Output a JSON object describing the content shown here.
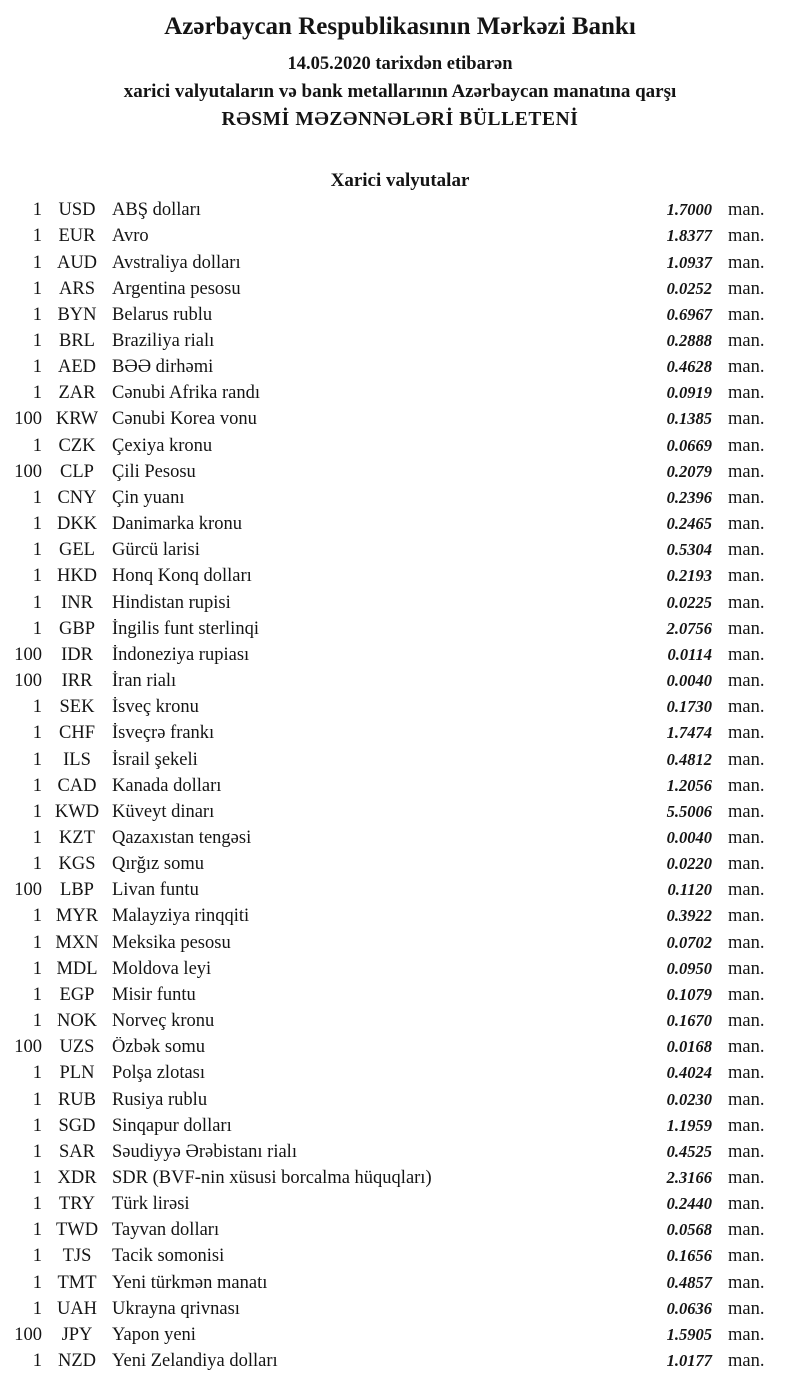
{
  "header": {
    "title": "Azərbaycan Respublikasının Mərkəzi Bankı",
    "date_line": "14.05.2020 tarixdən etibarən",
    "subtitle": "xarici valyutaların və bank metallarının Azərbaycan manatına qarşı",
    "bulletin_line": "RƏSMİ MƏZƏNNƏLƏRİ BÜLLETENİ"
  },
  "section": {
    "title": "Xarici valyutalar"
  },
  "unit_label": "man.",
  "rates": [
    {
      "qty": "1",
      "code": "USD",
      "name": "ABŞ dolları",
      "rate": "1.7000"
    },
    {
      "qty": "1",
      "code": "EUR",
      "name": "Avro",
      "rate": "1.8377"
    },
    {
      "qty": "1",
      "code": "AUD",
      "name": "Avstraliya dolları",
      "rate": "1.0937"
    },
    {
      "qty": "1",
      "code": "ARS",
      "name": "Argentina pesosu",
      "rate": "0.0252"
    },
    {
      "qty": "1",
      "code": "BYN",
      "name": "Belarus rublu",
      "rate": "0.6967"
    },
    {
      "qty": "1",
      "code": "BRL",
      "name": "Braziliya rialı",
      "rate": "0.2888"
    },
    {
      "qty": "1",
      "code": "AED",
      "name": "BƏƏ dirhəmi",
      "rate": "0.4628"
    },
    {
      "qty": "1",
      "code": "ZAR",
      "name": "Cənubi Afrika randı",
      "rate": "0.0919"
    },
    {
      "qty": "100",
      "code": "KRW",
      "name": "Cənubi Korea vonu",
      "rate": "0.1385"
    },
    {
      "qty": "1",
      "code": "CZK",
      "name": "Çexiya kronu",
      "rate": "0.0669"
    },
    {
      "qty": "100",
      "code": "CLP",
      "name": "Çili Pesosu",
      "rate": "0.2079"
    },
    {
      "qty": "1",
      "code": "CNY",
      "name": "Çin yuanı",
      "rate": "0.2396"
    },
    {
      "qty": "1",
      "code": "DKK",
      "name": "Danimarka kronu",
      "rate": "0.2465"
    },
    {
      "qty": "1",
      "code": "GEL",
      "name": "Gürcü larisi",
      "rate": "0.5304"
    },
    {
      "qty": "1",
      "code": "HKD",
      "name": "Honq Konq dolları",
      "rate": "0.2193"
    },
    {
      "qty": "1",
      "code": "INR",
      "name": "Hindistan rupisi",
      "rate": "0.0225"
    },
    {
      "qty": "1",
      "code": "GBP",
      "name": "İngilis funt sterlinqi",
      "rate": "2.0756"
    },
    {
      "qty": "100",
      "code": "IDR",
      "name": "İndoneziya rupiası",
      "rate": "0.0114"
    },
    {
      "qty": "100",
      "code": "IRR",
      "name": "İran rialı",
      "rate": "0.0040"
    },
    {
      "qty": "1",
      "code": "SEK",
      "name": "İsveç kronu",
      "rate": "0.1730"
    },
    {
      "qty": "1",
      "code": "CHF",
      "name": "İsveçrə frankı",
      "rate": "1.7474"
    },
    {
      "qty": "1",
      "code": "ILS",
      "name": "İsrail şekeli",
      "rate": "0.4812"
    },
    {
      "qty": "1",
      "code": "CAD",
      "name": "Kanada dolları",
      "rate": "1.2056"
    },
    {
      "qty": "1",
      "code": "KWD",
      "name": "Küveyt dinarı",
      "rate": "5.5006"
    },
    {
      "qty": "1",
      "code": "KZT",
      "name": "Qazaxıstan tengəsi",
      "rate": "0.0040"
    },
    {
      "qty": "1",
      "code": "KGS",
      "name": "Qırğız somu",
      "rate": "0.0220"
    },
    {
      "qty": "100",
      "code": "LBP",
      "name": "Livan funtu",
      "rate": "0.1120"
    },
    {
      "qty": "1",
      "code": "MYR",
      "name": "Malayziya rinqqiti",
      "rate": "0.3922"
    },
    {
      "qty": "1",
      "code": "MXN",
      "name": "Meksika pesosu",
      "rate": "0.0702"
    },
    {
      "qty": "1",
      "code": "MDL",
      "name": "Moldova leyi",
      "rate": "0.0950"
    },
    {
      "qty": "1",
      "code": "EGP",
      "name": "Misir funtu",
      "rate": "0.1079"
    },
    {
      "qty": "1",
      "code": "NOK",
      "name": "Norveç kronu",
      "rate": "0.1670"
    },
    {
      "qty": "100",
      "code": "UZS",
      "name": "Özbək somu",
      "rate": "0.0168"
    },
    {
      "qty": "1",
      "code": "PLN",
      "name": "Polşa zlotası",
      "rate": "0.4024"
    },
    {
      "qty": "1",
      "code": "RUB",
      "name": "Rusiya rublu",
      "rate": "0.0230"
    },
    {
      "qty": "1",
      "code": "SGD",
      "name": "Sinqapur dolları",
      "rate": "1.1959"
    },
    {
      "qty": "1",
      "code": "SAR",
      "name": "Səudiyyə Ərəbistanı rialı",
      "rate": "0.4525"
    },
    {
      "qty": "1",
      "code": "XDR",
      "name": "SDR (BVF-nin xüsusi borcalma hüquqları)",
      "rate": "2.3166"
    },
    {
      "qty": "1",
      "code": "TRY",
      "name": "Türk lirəsi",
      "rate": "0.2440"
    },
    {
      "qty": "1",
      "code": "TWD",
      "name": "Tayvan dolları",
      "rate": "0.0568"
    },
    {
      "qty": "1",
      "code": "TJS",
      "name": "Tacik somonisi",
      "rate": "0.1656"
    },
    {
      "qty": "1",
      "code": "TMT",
      "name": "Yeni türkmən manatı",
      "rate": "0.4857"
    },
    {
      "qty": "1",
      "code": "UAH",
      "name": "Ukrayna qrivnası",
      "rate": "0.0636"
    },
    {
      "qty": "100",
      "code": "JPY",
      "name": "Yapon yeni",
      "rate": "1.5905"
    },
    {
      "qty": "1",
      "code": "NZD",
      "name": "Yeni Zelandiya dolları",
      "rate": "1.0177"
    }
  ]
}
